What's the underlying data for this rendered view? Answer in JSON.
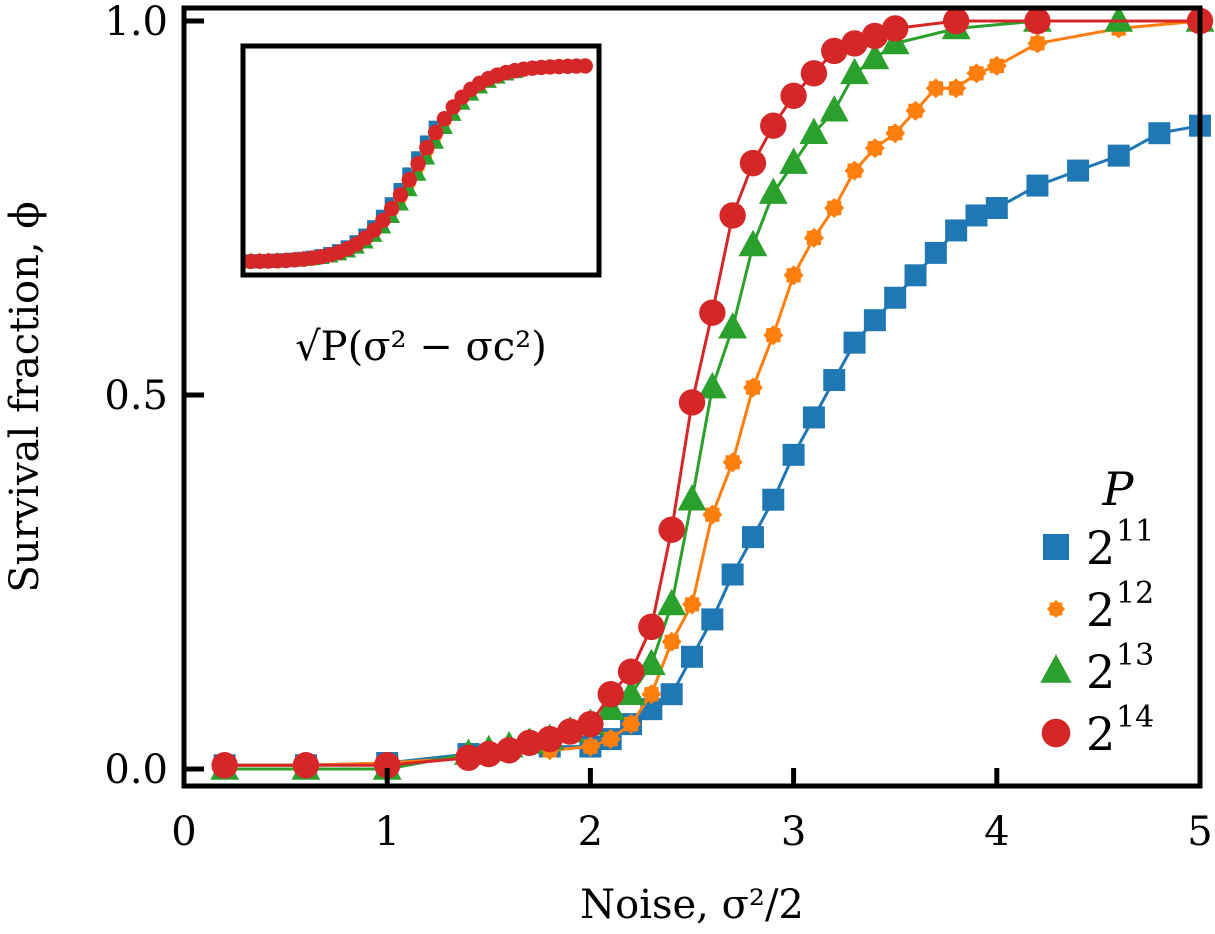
{
  "chart_data": {
    "type": "line",
    "title": "",
    "xlabel": "Noise, σ²/2",
    "ylabel": "Survival fraction, ϕ",
    "xlim": [
      0,
      5
    ],
    "ylim": [
      -0.02,
      1.02
    ],
    "xticks": [
      0,
      1,
      2,
      3,
      4,
      5
    ],
    "xtick_labels": [
      "0",
      "1",
      "2",
      "3",
      "4",
      "5"
    ],
    "yticks": [
      0.0,
      0.5,
      1.0
    ],
    "ytick_labels": [
      "0.0",
      "0.5",
      "1.0"
    ],
    "grid": false,
    "legend": {
      "title": "P",
      "position": "bottom-right",
      "entries": [
        {
          "base": "2",
          "exp": "11",
          "marker": "square",
          "color": "#1f77b4"
        },
        {
          "base": "2",
          "exp": "12",
          "marker": "flower",
          "color": "#ff7f0e"
        },
        {
          "base": "2",
          "exp": "13",
          "marker": "triangle",
          "color": "#2ca02c"
        },
        {
          "base": "2",
          "exp": "14",
          "marker": "circle",
          "color": "#d62728"
        }
      ]
    },
    "series": [
      {
        "name": "2^11",
        "color": "#1f77b4",
        "marker": "square",
        "x": [
          0.2,
          0.6,
          1.0,
          1.4,
          1.8,
          2.0,
          2.1,
          2.2,
          2.3,
          2.4,
          2.5,
          2.6,
          2.7,
          2.8,
          2.9,
          3.0,
          3.1,
          3.2,
          3.3,
          3.4,
          3.5,
          3.6,
          3.7,
          3.8,
          3.9,
          4.0,
          4.2,
          4.4,
          4.6,
          4.8,
          5.0
        ],
        "y": [
          0.005,
          0.005,
          0.008,
          0.02,
          0.03,
          0.03,
          0.04,
          0.06,
          0.08,
          0.1,
          0.15,
          0.2,
          0.26,
          0.31,
          0.36,
          0.42,
          0.47,
          0.52,
          0.57,
          0.6,
          0.63,
          0.66,
          0.69,
          0.72,
          0.74,
          0.75,
          0.78,
          0.8,
          0.82,
          0.85,
          0.86
        ]
      },
      {
        "name": "2^12",
        "color": "#ff7f0e",
        "marker": "flower",
        "x": [
          0.2,
          0.6,
          1.0,
          1.4,
          1.6,
          1.8,
          2.0,
          2.1,
          2.2,
          2.3,
          2.4,
          2.5,
          2.6,
          2.7,
          2.8,
          2.9,
          3.0,
          3.1,
          3.2,
          3.3,
          3.4,
          3.5,
          3.6,
          3.7,
          3.8,
          3.9,
          4.0,
          4.2,
          4.6,
          5.0
        ],
        "y": [
          0.005,
          0.005,
          0.008,
          0.015,
          0.02,
          0.025,
          0.03,
          0.04,
          0.06,
          0.1,
          0.17,
          0.22,
          0.34,
          0.41,
          0.51,
          0.58,
          0.66,
          0.71,
          0.75,
          0.8,
          0.83,
          0.85,
          0.88,
          0.91,
          0.91,
          0.93,
          0.94,
          0.97,
          0.99,
          1.0
        ]
      },
      {
        "name": "2^13",
        "color": "#2ca02c",
        "marker": "triangle",
        "x": [
          0.2,
          0.6,
          1.0,
          1.4,
          1.5,
          1.6,
          1.7,
          1.8,
          1.9,
          2.0,
          2.1,
          2.2,
          2.3,
          2.4,
          2.5,
          2.6,
          2.7,
          2.8,
          2.9,
          3.0,
          3.1,
          3.2,
          3.3,
          3.4,
          3.5,
          3.8,
          4.2,
          4.6,
          5.0
        ],
        "y": [
          0.0,
          0.0,
          0.0,
          0.02,
          0.025,
          0.03,
          0.035,
          0.04,
          0.05,
          0.06,
          0.08,
          0.1,
          0.14,
          0.22,
          0.36,
          0.51,
          0.59,
          0.7,
          0.77,
          0.81,
          0.85,
          0.88,
          0.93,
          0.95,
          0.97,
          0.99,
          1.0,
          1.0,
          1.0
        ]
      },
      {
        "name": "2^14",
        "color": "#d62728",
        "marker": "circle",
        "x": [
          0.2,
          0.6,
          1.0,
          1.4,
          1.5,
          1.6,
          1.7,
          1.8,
          1.9,
          2.0,
          2.1,
          2.2,
          2.3,
          2.4,
          2.5,
          2.6,
          2.7,
          2.8,
          2.9,
          3.0,
          3.1,
          3.2,
          3.3,
          3.4,
          3.5,
          3.8,
          4.2,
          5.0
        ],
        "y": [
          0.005,
          0.005,
          0.005,
          0.015,
          0.02,
          0.025,
          0.035,
          0.04,
          0.05,
          0.06,
          0.1,
          0.13,
          0.19,
          0.32,
          0.49,
          0.61,
          0.74,
          0.81,
          0.86,
          0.9,
          0.93,
          0.96,
          0.97,
          0.98,
          0.99,
          1.0,
          1.0,
          1.0
        ]
      }
    ],
    "inset": {
      "xlabel": "√P(σ² − σc²)",
      "description": "Data collapse of all four series onto a single sigmoid curve"
    }
  }
}
